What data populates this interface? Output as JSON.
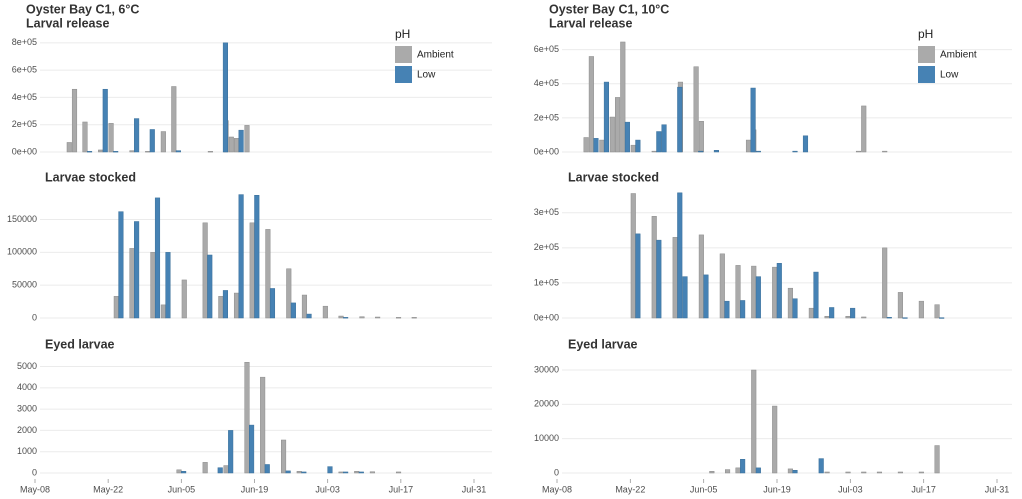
{
  "chart_data": [
    {
      "type": "bar",
      "title": "Oyster Bay C1, 6°C",
      "subtitle": "Larval release",
      "legend_title": "pH",
      "xlim": [
        "May-08",
        "Jul-31"
      ],
      "ylim": [
        0,
        850000
      ],
      "yticks": [
        {
          "value": 0,
          "label": "0e+00"
        },
        {
          "value": 200000,
          "label": "2e+05"
        },
        {
          "value": 400000,
          "label": "4e+05"
        },
        {
          "value": 600000,
          "label": "6e+05"
        },
        {
          "value": 800000,
          "label": "8e+05"
        }
      ],
      "x": [
        "May-15",
        "May-16",
        "May-18",
        "May-21",
        "May-23",
        "May-27",
        "May-30",
        "Jun-02",
        "Jun-04",
        "Jun-11",
        "Jun-13",
        "Jun-14",
        "Jun-15",
        "Jun-16",
        "Jun-18"
      ],
      "series": [
        {
          "name": "Ambient",
          "color": "#aaaaaa",
          "values": [
            70000,
            460000,
            220000,
            15000,
            210000,
            10000,
            5000,
            150000,
            480000,
            5000,
            null,
            230000,
            110000,
            100000,
            195000
          ]
        },
        {
          "name": "Low",
          "color": "#4682b4",
          "values": [
            null,
            null,
            5000,
            460000,
            5000,
            245000,
            165000,
            null,
            10000,
            null,
            800000,
            null,
            null,
            160000,
            null
          ]
        }
      ]
    },
    {
      "type": "bar",
      "subtitle": "Larvae stocked",
      "xlim": [
        "May-08",
        "Jul-31"
      ],
      "ylim": [
        0,
        195000
      ],
      "yticks": [
        0,
        50000,
        100000,
        150000
      ],
      "x": [
        "May-24",
        "May-27",
        "May-31",
        "Jun-02",
        "Jun-06",
        "Jun-10",
        "Jun-13",
        "Jun-16",
        "Jun-19",
        "Jun-22",
        "Jun-26",
        "Jun-29",
        "Jul-03",
        "Jul-06",
        "Jul-10",
        "Jul-13",
        "Jul-17",
        "Jul-20"
      ],
      "series": [
        {
          "name": "Ambient",
          "color": "#aaaaaa",
          "values": [
            33000,
            106000,
            100000,
            20000,
            58000,
            145000,
            33000,
            38000,
            145000,
            135000,
            75000,
            35000,
            18000,
            3000,
            2000,
            1500,
            1000,
            1000
          ]
        },
        {
          "name": "Low",
          "color": "#4682b4",
          "values": [
            162000,
            147000,
            183000,
            100000,
            null,
            96000,
            42000,
            188000,
            187000,
            45000,
            23000,
            6000,
            null,
            1000,
            null,
            null,
            null,
            null
          ]
        }
      ]
    },
    {
      "type": "bar",
      "subtitle": "Eyed larvae",
      "xlim": [
        "May-08",
        "Jul-31"
      ],
      "ylim": [
        0,
        5400
      ],
      "yticks": [
        0,
        1000,
        2000,
        3000,
        4000,
        5000
      ],
      "xticks": [
        "May-08",
        "May-22",
        "Jun-05",
        "Jun-19",
        "Jul-03",
        "Jul-17",
        "Jul-31"
      ],
      "x": [
        "Jun-05",
        "Jun-10",
        "Jun-12",
        "Jun-14",
        "Jun-18",
        "Jun-21",
        "Jun-25",
        "Jun-28",
        "Jul-03",
        "Jul-06",
        "Jul-09",
        "Jul-12",
        "Jul-17"
      ],
      "series": [
        {
          "name": "Ambient",
          "color": "#aaaaaa",
          "values": [
            150,
            500,
            null,
            350,
            5200,
            4500,
            1550,
            80,
            null,
            50,
            80,
            60,
            50
          ]
        },
        {
          "name": "Low",
          "color": "#4682b4",
          "values": [
            80,
            null,
            250,
            2000,
            2250,
            400,
            100,
            50,
            300,
            50,
            50,
            null,
            null
          ]
        }
      ]
    },
    {
      "type": "bar",
      "title": "Oyster Bay C1, 10°C",
      "subtitle": "Larval release",
      "legend_title": "pH",
      "xlim": [
        "May-08",
        "Jul-31"
      ],
      "ylim": [
        0,
        680000
      ],
      "yticks": [
        {
          "value": 0,
          "label": "0e+00"
        },
        {
          "value": 200000,
          "label": "2e+05"
        },
        {
          "value": 400000,
          "label": "4e+05"
        },
        {
          "value": 600000,
          "label": "6e+05"
        }
      ],
      "x": [
        "May-14",
        "May-15",
        "May-17",
        "May-19",
        "May-20",
        "May-21",
        "May-23",
        "May-27",
        "May-28",
        "May-31",
        "Jun-01",
        "Jun-04",
        "Jun-05",
        "Jun-07",
        "Jun-14",
        "Jun-15",
        "Jun-22",
        "Jun-24",
        "Jul-05",
        "Jul-06",
        "Jul-10"
      ],
      "series": [
        {
          "name": "Ambient",
          "color": "#aaaaaa",
          "values": [
            85000,
            560000,
            70000,
            205000,
            320000,
            645000,
            40000,
            5000,
            null,
            null,
            410000,
            500000,
            180000,
            null,
            70000,
            130000,
            null,
            null,
            5000,
            270000,
            5000
          ]
        },
        {
          "name": "Low",
          "color": "#4682b4",
          "values": [
            null,
            80000,
            410000,
            null,
            null,
            175000,
            70000,
            120000,
            160000,
            380000,
            null,
            5000,
            null,
            10000,
            375000,
            5000,
            5000,
            95000,
            null,
            null,
            null
          ]
        }
      ]
    },
    {
      "type": "bar",
      "subtitle": "Larvae stocked",
      "xlim": [
        "May-08",
        "Jul-31"
      ],
      "ylim": [
        0,
        365000
      ],
      "yticks": [
        {
          "value": 0,
          "label": "0e+00"
        },
        {
          "value": 100000,
          "label": "1e+05"
        },
        {
          "value": 200000,
          "label": "2e+05"
        },
        {
          "value": 300000,
          "label": "3e+05"
        }
      ],
      "x": [
        "May-23",
        "May-27",
        "May-31",
        "Jun-01",
        "Jun-05",
        "Jun-09",
        "Jun-12",
        "Jun-15",
        "Jun-19",
        "Jun-22",
        "Jun-26",
        "Jun-29",
        "Jul-03",
        "Jul-06",
        "Jul-10",
        "Jul-13",
        "Jul-17",
        "Jul-20"
      ],
      "series": [
        {
          "name": "Ambient",
          "color": "#aaaaaa",
          "values": [
            355000,
            290000,
            230000,
            null,
            237000,
            183000,
            150000,
            148000,
            145000,
            85000,
            28000,
            5000,
            5000,
            3000,
            200000,
            73000,
            48000,
            38000
          ]
        },
        {
          "name": "Low",
          "color": "#4682b4",
          "values": [
            240000,
            222000,
            357000,
            118000,
            123000,
            48000,
            50000,
            118000,
            156000,
            55000,
            131000,
            30000,
            28000,
            null,
            2000,
            1000,
            null,
            1000
          ]
        }
      ]
    },
    {
      "type": "bar",
      "subtitle": "Eyed larvae",
      "xlim": [
        "May-08",
        "Jul-31"
      ],
      "ylim": [
        0,
        33500
      ],
      "yticks": [
        0,
        10000,
        20000,
        30000
      ],
      "xticks": [
        "May-08",
        "May-22",
        "Jun-05",
        "Jun-19",
        "Jul-03",
        "Jul-17",
        "Jul-31"
      ],
      "x": [
        "Jun-07",
        "Jun-10",
        "Jun-12",
        "Jun-15",
        "Jun-19",
        "Jun-22",
        "Jun-27",
        "Jun-29",
        "Jul-03",
        "Jul-06",
        "Jul-09",
        "Jul-13",
        "Jul-17",
        "Jul-20"
      ],
      "series": [
        {
          "name": "Ambient",
          "color": "#aaaaaa",
          "values": [
            500,
            1000,
            1500,
            30000,
            19500,
            1200,
            null,
            300,
            300,
            300,
            300,
            300,
            300,
            8000
          ]
        },
        {
          "name": "Low",
          "color": "#4682b4",
          "values": [
            null,
            null,
            4000,
            1500,
            null,
            800,
            4200,
            null,
            null,
            null,
            null,
            null,
            null,
            null
          ]
        }
      ]
    }
  ]
}
